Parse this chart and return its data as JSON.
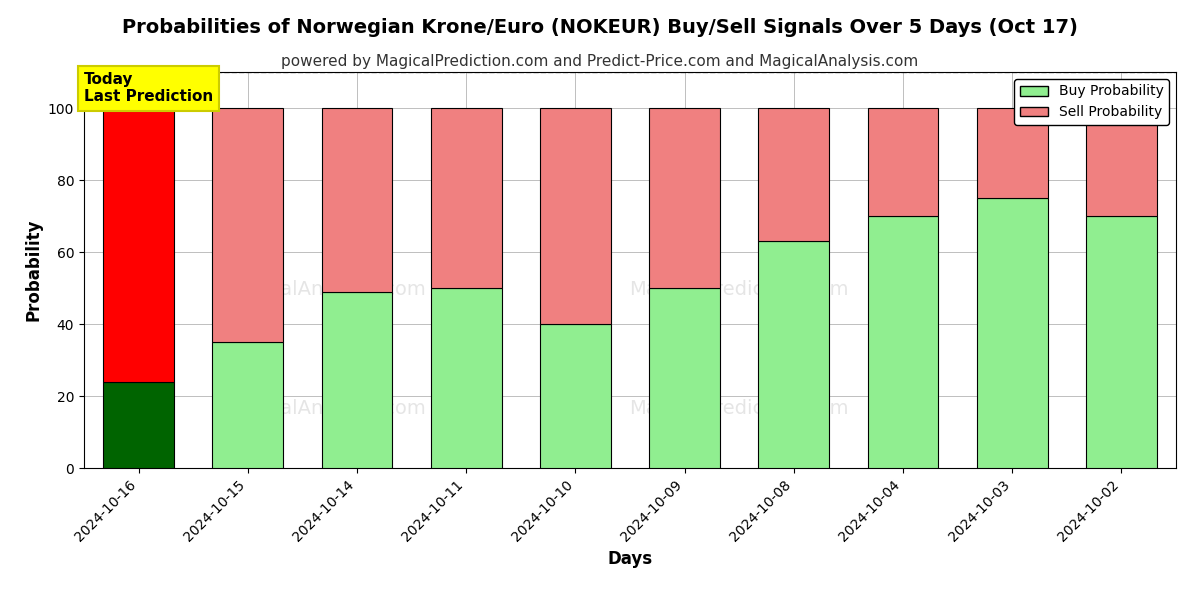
{
  "title": "Probabilities of Norwegian Krone/Euro (NOKEUR) Buy/Sell Signals Over 5 Days (Oct 17)",
  "subtitle": "powered by MagicalPrediction.com and Predict-Price.com and MagicalAnalysis.com",
  "xlabel": "Days",
  "ylabel": "Probability",
  "dates": [
    "2024-10-16",
    "2024-10-15",
    "2024-10-14",
    "2024-10-11",
    "2024-10-10",
    "2024-10-09",
    "2024-10-08",
    "2024-10-04",
    "2024-10-03",
    "2024-10-02"
  ],
  "buy_values": [
    24,
    35,
    49,
    50,
    40,
    50,
    63,
    70,
    75,
    70
  ],
  "sell_values": [
    76,
    65,
    51,
    50,
    60,
    50,
    37,
    30,
    25,
    30
  ],
  "buy_color_today": "#006400",
  "sell_color_today": "#ff0000",
  "buy_color_normal": "#90EE90",
  "sell_color_normal": "#F08080",
  "bar_edge_color": "#000000",
  "bar_width": 0.65,
  "ylim_max": 110,
  "yticks": [
    0,
    20,
    40,
    60,
    80,
    100
  ],
  "dashed_line_y": 110,
  "today_box_text": "Today\nLast Prediction",
  "today_box_color": "#FFFF00",
  "today_box_text_color": "#000000",
  "legend_buy_label": "Buy Probability",
  "legend_sell_label": "Sell Probability",
  "title_fontsize": 14,
  "subtitle_fontsize": 11,
  "axis_label_fontsize": 12,
  "tick_fontsize": 10
}
